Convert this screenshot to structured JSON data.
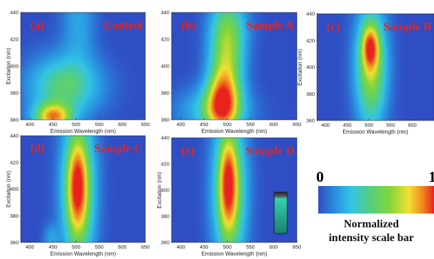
{
  "chart_data": [
    {
      "type": "heatmap",
      "panel_label": "(a)",
      "title": "Control",
      "xlabel": "Emission Wavelength (nm)",
      "ylabel": "Excitation (nm)",
      "xlim": [
        380,
        650
      ],
      "ylim": [
        360,
        440
      ],
      "xticks": [
        400,
        450,
        500,
        550,
        600,
        650
      ],
      "yticks": [
        360,
        380,
        400,
        420,
        440
      ],
      "peaks": [
        {
          "x": 450,
          "y": 362,
          "sx": 28,
          "sy": 7,
          "amp": 0.75
        },
        {
          "x": 475,
          "y": 385,
          "sx": 55,
          "sy": 16,
          "amp": 0.45
        },
        {
          "x": 505,
          "y": 432,
          "sx": 26,
          "sy": 22,
          "amp": 0.2
        }
      ]
    },
    {
      "type": "heatmap",
      "panel_label": "(b)",
      "title": "Sample A",
      "xlabel": "Emission Wavelength (nm)",
      "ylabel": "",
      "xlim": [
        380,
        650
      ],
      "ylim": [
        360,
        440
      ],
      "xticks": [
        400,
        450,
        500,
        550,
        600,
        650
      ],
      "yticks": [
        360,
        380,
        400,
        420,
        440
      ],
      "peaks": [
        {
          "x": 488,
          "y": 372,
          "sx": 24,
          "sy": 16,
          "amp": 0.6
        },
        {
          "x": 498,
          "y": 400,
          "sx": 26,
          "sy": 28,
          "amp": 0.52
        },
        {
          "x": 470,
          "y": 367,
          "sx": 55,
          "sy": 12,
          "amp": 0.3
        },
        {
          "x": 505,
          "y": 430,
          "sx": 30,
          "sy": 18,
          "amp": 0.25
        }
      ]
    },
    {
      "type": "heatmap",
      "panel_label": "(c)",
      "title": "Sample B",
      "xlabel": "Emission Wavelength (nm)",
      "ylabel": "Excitation (nm)",
      "xlim": [
        380,
        650
      ],
      "ylim": [
        360,
        440
      ],
      "xticks": [
        400,
        450,
        500,
        550,
        600
      ],
      "yticks": [
        360,
        380,
        400,
        420,
        440
      ],
      "peaks": [
        {
          "x": 503,
          "y": 415,
          "sx": 13,
          "sy": 11,
          "amp": 0.55
        },
        {
          "x": 505,
          "y": 400,
          "sx": 26,
          "sy": 32,
          "amp": 0.62
        }
      ]
    },
    {
      "type": "heatmap",
      "panel_label": "(d)",
      "title": "Sample C",
      "xlabel": "Emission Wavelength (nm)",
      "ylabel": "Excitation (nm)",
      "xlim": [
        380,
        650
      ],
      "ylim": [
        360,
        440
      ],
      "xticks": [
        400,
        450,
        500,
        550,
        600,
        650
      ],
      "yticks": [
        360,
        380,
        400,
        420,
        440
      ],
      "peaks": [
        {
          "x": 503,
          "y": 402,
          "sx": 14,
          "sy": 22,
          "amp": 0.5
        },
        {
          "x": 505,
          "y": 400,
          "sx": 26,
          "sy": 42,
          "amp": 0.62
        },
        {
          "x": 445,
          "y": 362,
          "sx": 12,
          "sy": 8,
          "amp": 0.18
        }
      ]
    },
    {
      "type": "heatmap",
      "panel_label": "(e)",
      "title": "Sample D",
      "xlabel": "Emission Wavelength (nm)",
      "ylabel": "Excitation (nm)",
      "xlim": [
        380,
        650
      ],
      "ylim": [
        360,
        440
      ],
      "xticks": [
        400,
        450,
        500,
        550,
        600,
        650
      ],
      "yticks": [
        360,
        380,
        400,
        420,
        440
      ],
      "peaks": [
        {
          "x": 502,
          "y": 405,
          "sx": 13,
          "sy": 24,
          "amp": 0.52
        },
        {
          "x": 505,
          "y": 400,
          "sx": 26,
          "sy": 42,
          "amp": 0.6
        }
      ]
    }
  ],
  "colorbar": {
    "min_label": "0",
    "max_label": "1",
    "caption_line1": "Normalized",
    "caption_line2": "intensity scale bar"
  },
  "colors": {
    "background": "#2f4dc4",
    "colormap": [
      "#2f4dc4",
      "#2a8fe0",
      "#31c4e6",
      "#55cf7e",
      "#83d63a",
      "#f2e033",
      "#f08a20",
      "#e8231f"
    ],
    "label_red": "#e8231f"
  }
}
